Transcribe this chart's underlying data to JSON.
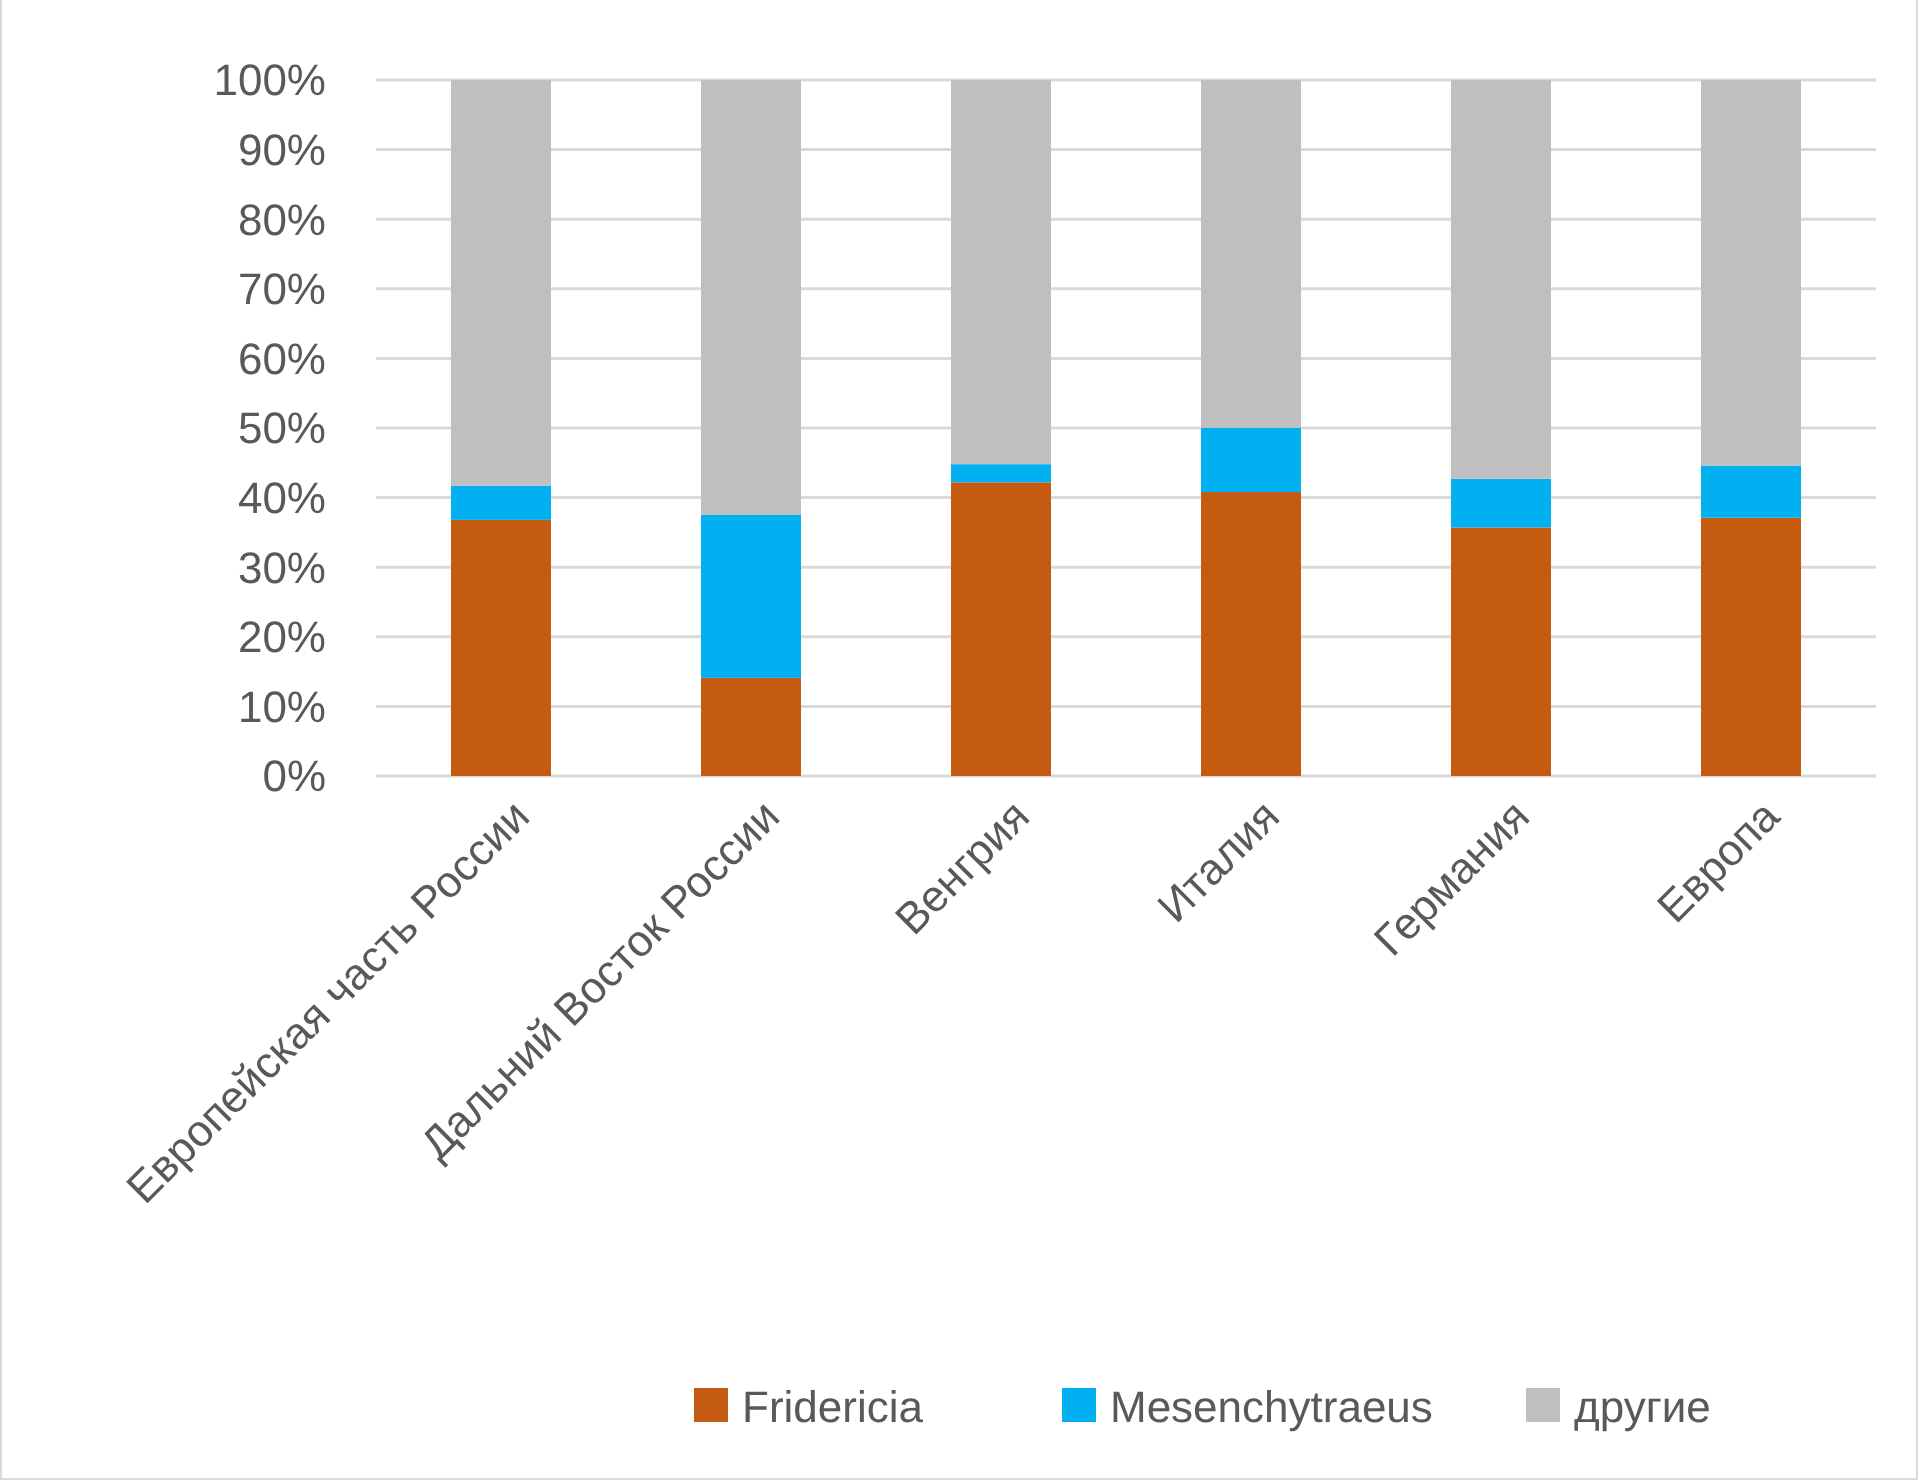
{
  "chart_data": {
    "type": "bar",
    "stacked": true,
    "categories": [
      "Европейская часть России",
      "Дальний Восток России",
      "Венгрия",
      "Италия",
      "Германия",
      "Европа"
    ],
    "series": [
      {
        "name": "Fridericia",
        "color": "#c55a11",
        "values": [
          36.8,
          14.1,
          42.2,
          40.8,
          35.7,
          37.1
        ]
      },
      {
        "name": "Mesenchytraeus",
        "color": "#00b0f0",
        "values": [
          4.9,
          23.4,
          2.6,
          9.2,
          7.0,
          7.5
        ]
      },
      {
        "name": "другие",
        "color": "#bfbfbf",
        "values": [
          58.3,
          62.5,
          55.2,
          50.0,
          57.3,
          55.4
        ]
      }
    ],
    "ylim": [
      0,
      100
    ],
    "yticks": [
      {
        "value": 0,
        "label": "0%"
      },
      {
        "value": 10,
        "label": "10%"
      },
      {
        "value": 20,
        "label": "20%"
      },
      {
        "value": 30,
        "label": "30%"
      },
      {
        "value": 40,
        "label": "40%"
      },
      {
        "value": 50,
        "label": "50%"
      },
      {
        "value": 60,
        "label": "60%"
      },
      {
        "value": 70,
        "label": "70%"
      },
      {
        "value": 80,
        "label": "80%"
      },
      {
        "value": 90,
        "label": "90%"
      },
      {
        "value": 100,
        "label": "100%"
      }
    ],
    "grid": "y",
    "legend": "bottom"
  }
}
